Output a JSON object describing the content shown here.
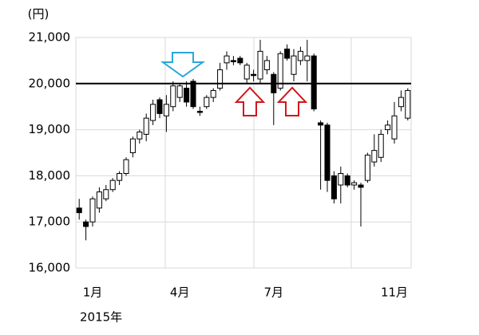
{
  "chart_data": {
    "type": "candlestick",
    "y_unit": "(円)",
    "x_caption": "2015年",
    "categories": [
      null,
      null,
      "1月",
      null,
      null,
      null,
      null,
      null,
      null,
      null,
      null,
      null,
      null,
      null,
      null,
      "4月",
      null,
      null,
      null,
      null,
      null,
      null,
      null,
      null,
      null,
      null,
      null,
      null,
      null,
      "7月",
      null,
      null,
      null,
      null,
      null,
      null,
      null,
      null,
      null,
      null,
      null,
      null,
      null,
      null,
      null,
      null,
      null,
      "11月",
      null,
      null
    ],
    "open": [
      17300,
      17000,
      17000,
      17300,
      17500,
      17700,
      17900,
      18050,
      18500,
      18800,
      18900,
      19200,
      19650,
      19300,
      19500,
      19700,
      19900,
      20050,
      19400,
      19500,
      19700,
      19900,
      20450,
      20500,
      20550,
      20100,
      20200,
      20100,
      20300,
      20200,
      19900,
      20750,
      20200,
      20500,
      20500,
      20600,
      19150,
      19100,
      18000,
      17800,
      18000,
      17800,
      17800,
      17900,
      18300,
      18400,
      19000,
      18800,
      19500,
      19250
    ],
    "high": [
      17500,
      17050,
      17550,
      17750,
      17800,
      17950,
      18100,
      18400,
      18850,
      19000,
      19350,
      19650,
      19700,
      19750,
      20050,
      20000,
      20050,
      20100,
      19500,
      19750,
      19900,
      20450,
      20700,
      20600,
      20600,
      20450,
      20300,
      20950,
      20600,
      20250,
      20700,
      20850,
      20750,
      20800,
      20950,
      20650,
      19200,
      19150,
      18100,
      18200,
      18050,
      17900,
      17850,
      18500,
      18900,
      19000,
      19200,
      19600,
      19850,
      19900
    ],
    "low": [
      17050,
      16600,
      16900,
      17200,
      17450,
      17650,
      17800,
      18000,
      18400,
      18700,
      18750,
      19100,
      19250,
      18950,
      19400,
      19600,
      19500,
      19450,
      19300,
      19450,
      19600,
      19850,
      20300,
      20400,
      20400,
      20000,
      20050,
      20000,
      20200,
      19100,
      19850,
      20500,
      20050,
      20400,
      20050,
      19400,
      17700,
      17650,
      17400,
      17400,
      17750,
      17700,
      16900,
      17850,
      18200,
      18300,
      18900,
      18700,
      19400,
      19200
    ],
    "close": [
      17200,
      16900,
      17500,
      17650,
      17700,
      17900,
      18050,
      18350,
      18800,
      18950,
      19250,
      19550,
      19350,
      19550,
      19950,
      19950,
      19600,
      19500,
      19380,
      19700,
      19850,
      20300,
      20600,
      20480,
      20450,
      20400,
      20180,
      20700,
      20500,
      19800,
      20650,
      20550,
      20600,
      20700,
      20600,
      19450,
      19100,
      17900,
      17500,
      18050,
      17800,
      17850,
      17750,
      18450,
      18550,
      18900,
      19100,
      19300,
      19700,
      19850
    ],
    "up_color": "#ffffff",
    "down_color": "#000000",
    "reference_line": 20000,
    "ylim": [
      16000,
      21000
    ],
    "yticks": [
      {
        "value": 16000,
        "label": "16,000"
      },
      {
        "value": 17000,
        "label": "17,000"
      },
      {
        "value": 18000,
        "label": "18,000"
      },
      {
        "value": 19000,
        "label": "19,000"
      },
      {
        "value": 20000,
        "label": "20,000"
      },
      {
        "value": 21000,
        "label": "21,000"
      }
    ],
    "grid": true
  }
}
